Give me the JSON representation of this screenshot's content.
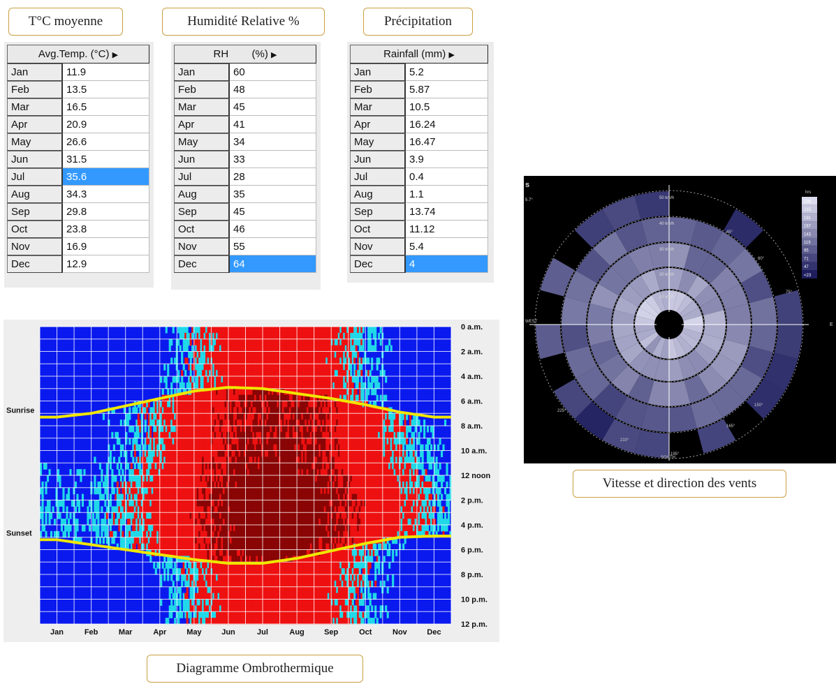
{
  "captions": {
    "temp": "T°C moyenne",
    "rh": "Humidité Relative %",
    "precip": "Précipitation",
    "wind": "Vitesse et direction des vents",
    "ombro": "Diagramme Ombrothermique"
  },
  "tables": {
    "temp": {
      "header": "Avg.Temp. (°C)",
      "rows": [
        [
          "Jan",
          "11.9"
        ],
        [
          "Feb",
          "13.5"
        ],
        [
          "Mar",
          "16.5"
        ],
        [
          "Apr",
          "20.9"
        ],
        [
          "May",
          "26.6"
        ],
        [
          "Jun",
          "31.5"
        ],
        [
          "Jul",
          "35.6"
        ],
        [
          "Aug",
          "34.3"
        ],
        [
          "Sep",
          "29.8"
        ],
        [
          "Oct",
          "23.8"
        ],
        [
          "Nov",
          "16.9"
        ],
        [
          "Dec",
          "12.9"
        ]
      ],
      "selected": "Jul"
    },
    "rh": {
      "header": "RH        (%)",
      "rows": [
        [
          "Jan",
          "60"
        ],
        [
          "Feb",
          "48"
        ],
        [
          "Mar",
          "45"
        ],
        [
          "Apr",
          "41"
        ],
        [
          "May",
          "34"
        ],
        [
          "Jun",
          "33"
        ],
        [
          "Jul",
          "28"
        ],
        [
          "Aug",
          "35"
        ],
        [
          "Sep",
          "45"
        ],
        [
          "Oct",
          "46"
        ],
        [
          "Nov",
          "55"
        ],
        [
          "Dec",
          "64"
        ]
      ],
      "selected": "Dec"
    },
    "precip": {
      "header": "Rainfall (mm)",
      "rows": [
        [
          "Jan",
          "5.2"
        ],
        [
          "Feb",
          "5.87"
        ],
        [
          "Mar",
          "10.5"
        ],
        [
          "Apr",
          "16.24"
        ],
        [
          "May",
          "16.47"
        ],
        [
          "Jun",
          "3.9"
        ],
        [
          "Jul",
          "0.4"
        ],
        [
          "Aug",
          "1.1"
        ],
        [
          "Sep",
          "13.74"
        ],
        [
          "Oct",
          "11.12"
        ],
        [
          "Nov",
          "5.4"
        ],
        [
          "Dec",
          "4"
        ]
      ],
      "selected": "Dec"
    }
  },
  "chart_data": [
    {
      "type": "table",
      "title": "Avg.Temp. (°C)",
      "categories": [
        "Jan",
        "Feb",
        "Mar",
        "Apr",
        "May",
        "Jun",
        "Jul",
        "Aug",
        "Sep",
        "Oct",
        "Nov",
        "Dec"
      ],
      "values": [
        11.9,
        13.5,
        16.5,
        20.9,
        26.6,
        31.5,
        35.6,
        34.3,
        29.8,
        23.8,
        16.9,
        12.9
      ]
    },
    {
      "type": "table",
      "title": "RH (%)",
      "categories": [
        "Jan",
        "Feb",
        "Mar",
        "Apr",
        "May",
        "Jun",
        "Jul",
        "Aug",
        "Sep",
        "Oct",
        "Nov",
        "Dec"
      ],
      "values": [
        60,
        48,
        45,
        41,
        34,
        33,
        28,
        35,
        45,
        46,
        55,
        64
      ]
    },
    {
      "type": "table",
      "title": "Rainfall (mm)",
      "categories": [
        "Jan",
        "Feb",
        "Mar",
        "Apr",
        "May",
        "Jun",
        "Jul",
        "Aug",
        "Sep",
        "Oct",
        "Nov",
        "Dec"
      ],
      "values": [
        5.2,
        5.87,
        10.5,
        16.24,
        16.47,
        3.9,
        0.4,
        1.1,
        13.74,
        11.12,
        5.4,
        4
      ]
    },
    {
      "type": "heatmap",
      "x_categories": [
        "Jan",
        "Feb",
        "Mar",
        "Apr",
        "May",
        "Jun",
        "Jul",
        "Aug",
        "Sep",
        "Oct",
        "Nov",
        "Dec"
      ],
      "y_ticks": [
        "0 a.m.",
        "2 a.m.",
        "4 a.m.",
        "6 a.m.",
        "8 a.m.",
        "10 a.m.",
        "12 noon",
        "2 p.m.",
        "4 p.m.",
        "6 p.m.",
        "8 p.m.",
        "10 p.m.",
        "12 p.m."
      ],
      "line_labels": [
        "Sunrise",
        "Sunset"
      ],
      "sunrise_hours": [
        7.3,
        7.0,
        6.4,
        5.8,
        5.2,
        4.9,
        5.0,
        5.4,
        5.8,
        6.3,
        6.9,
        7.3
      ],
      "sunset_hours": [
        17.2,
        17.6,
        18.0,
        18.4,
        18.8,
        19.1,
        19.1,
        18.7,
        18.1,
        17.5,
        17.0,
        16.9
      ],
      "colors": {
        "cold": "#0a1aee",
        "cool": "#20d8e8",
        "hot": "#ee1111",
        "very_hot": "#8a0505",
        "sun_line": "#f0e600"
      },
      "warm_season_months": [
        "Apr",
        "May",
        "Jun",
        "Jul",
        "Aug",
        "Sep",
        "Oct"
      ]
    },
    {
      "type": "heatmap",
      "subtype": "wind-rose",
      "ring_labels": [
        "10 km/h",
        "20 km/h",
        "30 km/h",
        "40 km/h",
        "50 km/h"
      ],
      "direction_labels": [
        "WEST",
        "SOUTH",
        "45°",
        "60°",
        "75°",
        "150°",
        "165°",
        "195°",
        "210°",
        "225°"
      ],
      "legend_title": "hrs",
      "legend_values": [
        "239",
        "215",
        "191",
        "167",
        "143",
        "119",
        "95",
        "71",
        "47",
        "<23"
      ]
    }
  ],
  "wind_side_labels": {
    "corner": "s",
    "sub": "5.7°",
    "east": "E"
  }
}
